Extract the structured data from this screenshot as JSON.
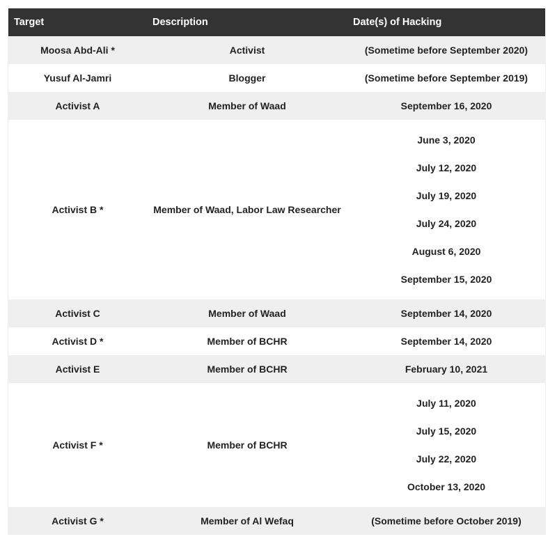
{
  "headers": [
    "Target",
    "Description",
    "Date(s) of Hacking"
  ],
  "rows": [
    {
      "target": "Moosa Abd-Ali *",
      "description": "Activist",
      "dates": [
        "(Sometime before September 2020)"
      ]
    },
    {
      "target": "Yusuf Al-Jamri",
      "description": "Blogger",
      "dates": [
        "(Sometime before September 2019)"
      ]
    },
    {
      "target": "Activist A",
      "description": "Member of Waad",
      "dates": [
        "September 16, 2020"
      ]
    },
    {
      "target": "Activist B *",
      "description": "Member of Waad, Labor Law Researcher",
      "dates": [
        "June 3, 2020",
        "July 12, 2020",
        "July 19, 2020",
        "July 24, 2020",
        "August 6, 2020",
        "September 15, 2020"
      ]
    },
    {
      "target": "Activist C",
      "description": "Member of Waad",
      "dates": [
        "September 14, 2020"
      ]
    },
    {
      "target": "Activist D *",
      "description": "Member of BCHR",
      "dates": [
        "September 14, 2020"
      ]
    },
    {
      "target": "Activist E",
      "description": "Member of BCHR",
      "dates": [
        "February 10, 2021"
      ]
    },
    {
      "target": "Activist F *",
      "description": "Member of BCHR",
      "dates": [
        "July 11, 2020",
        "July 15, 2020",
        "July 22, 2020",
        "October 13, 2020"
      ]
    },
    {
      "target": "Activist G *",
      "description": "Member of Al Wefaq",
      "dates": [
        "(Sometime before October 2019)"
      ]
    }
  ]
}
